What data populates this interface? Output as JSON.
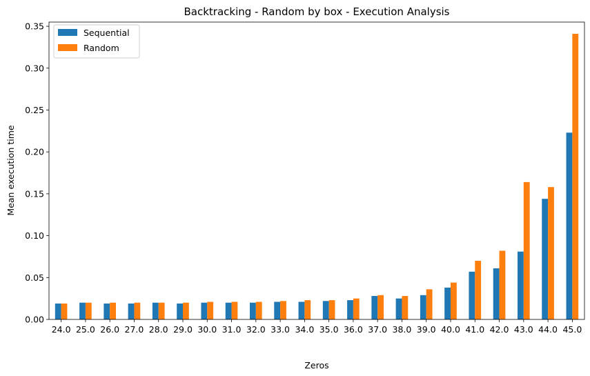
{
  "chart_data": {
    "type": "bar",
    "title": "Backtracking - Random by box - Execution Analysis",
    "xlabel": "Zeros",
    "ylabel": "Mean execution time",
    "categories": [
      "24.0",
      "25.0",
      "26.0",
      "27.0",
      "28.0",
      "29.0",
      "30.0",
      "31.0",
      "32.0",
      "33.0",
      "34.0",
      "35.0",
      "36.0",
      "37.0",
      "38.0",
      "39.0",
      "40.0",
      "41.0",
      "42.0",
      "43.0",
      "44.0",
      "45.0"
    ],
    "series": [
      {
        "name": "Sequential",
        "color": "#1f77b4",
        "values": [
          0.019,
          0.02,
          0.019,
          0.019,
          0.02,
          0.019,
          0.02,
          0.02,
          0.02,
          0.021,
          0.021,
          0.022,
          0.023,
          0.028,
          0.025,
          0.029,
          0.038,
          0.057,
          0.061,
          0.081,
          0.144,
          0.223
        ]
      },
      {
        "name": "Random",
        "color": "#ff7f0e",
        "values": [
          0.019,
          0.02,
          0.02,
          0.02,
          0.02,
          0.02,
          0.021,
          0.021,
          0.021,
          0.022,
          0.023,
          0.023,
          0.025,
          0.029,
          0.028,
          0.036,
          0.044,
          0.07,
          0.082,
          0.164,
          0.158,
          0.341
        ]
      }
    ],
    "ylim": [
      0,
      0.355
    ],
    "yticks": [
      "0.00",
      "0.05",
      "0.10",
      "0.15",
      "0.20",
      "0.25",
      "0.30",
      "0.35"
    ],
    "legend": "top-left",
    "grid": false
  }
}
